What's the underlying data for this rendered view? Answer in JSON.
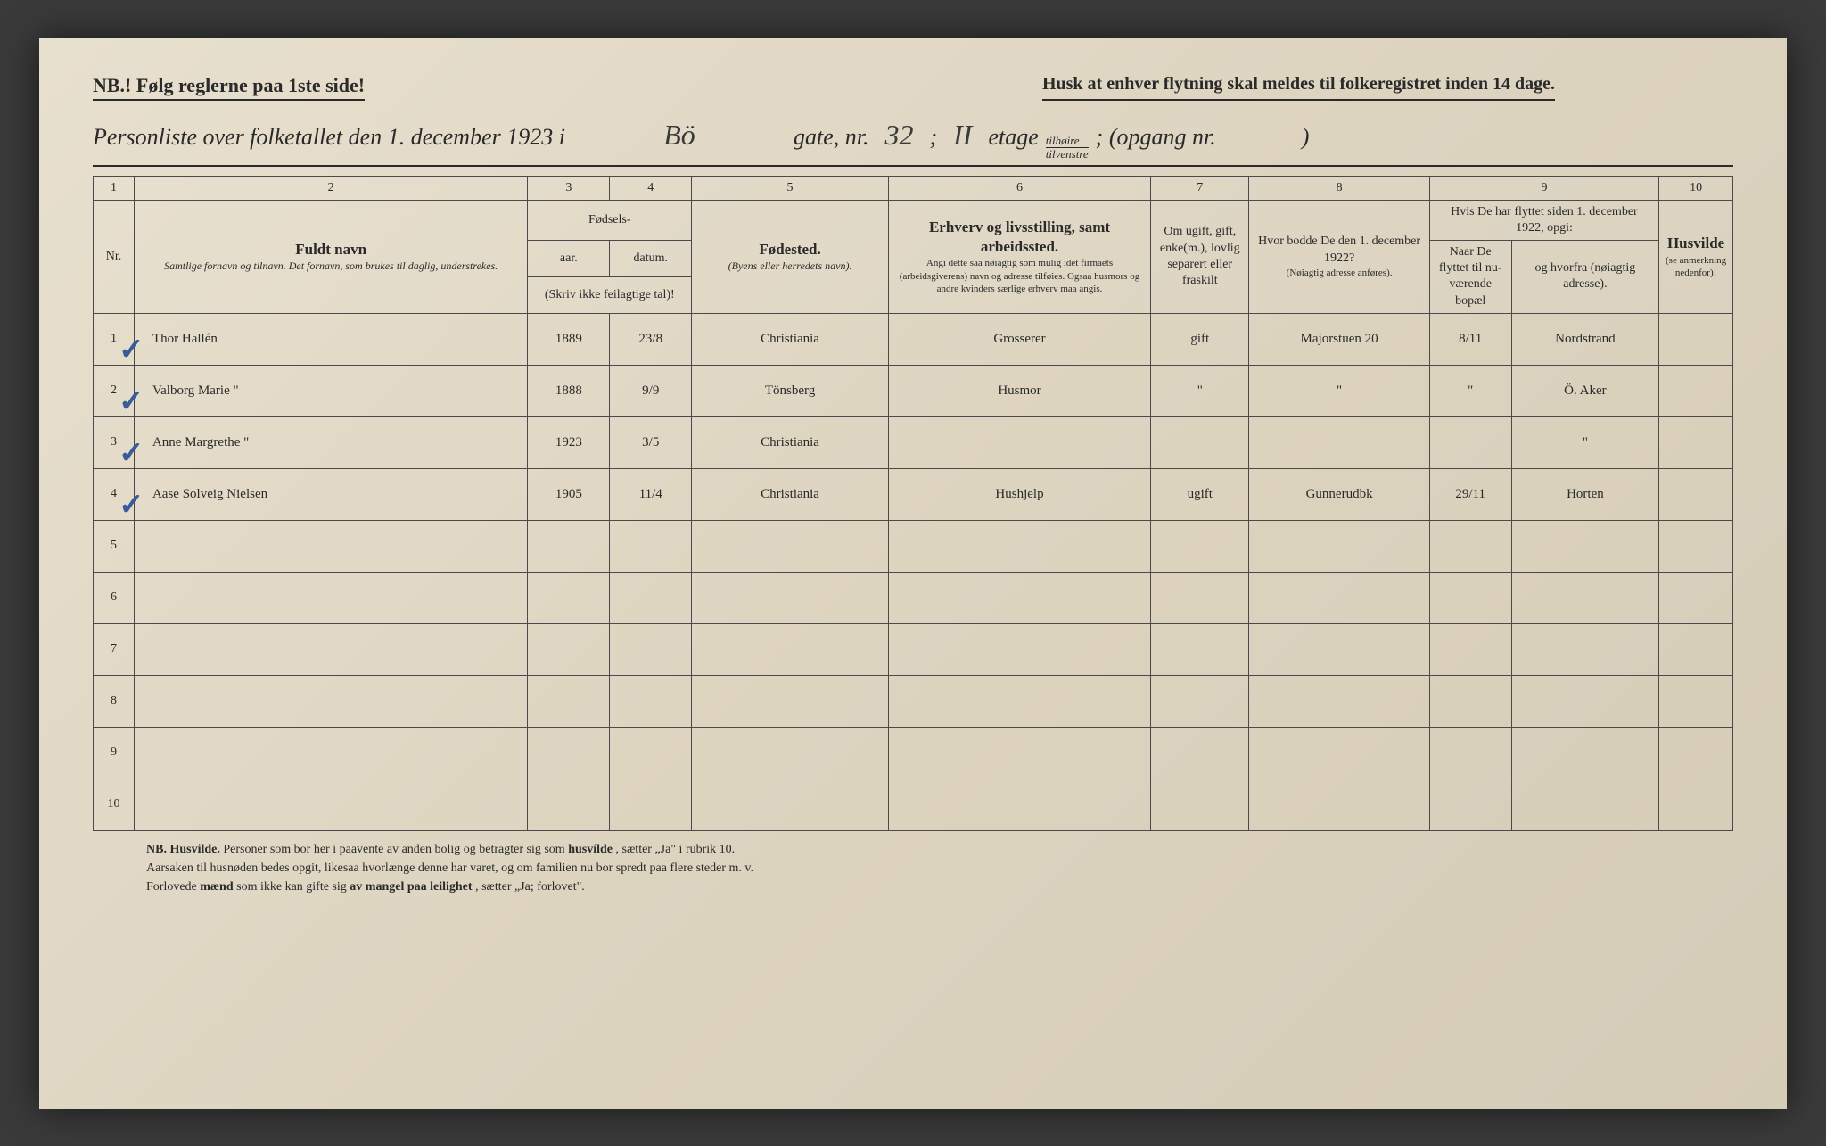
{
  "header": {
    "nb": "NB.! Følg reglerne paa 1ste side!",
    "husk": "Husk at enhver flytning skal meldes til folkeregistret inden 14 dage.",
    "title_prefix": "Personliste over folketallet den 1. december 1923 i",
    "street": "Bö",
    "gate_label": "gate, nr.",
    "gate_nr": "32",
    "etage_label_pre": ";",
    "etage_nr": "II",
    "etage_label": "etage",
    "etage_opt_top": "tilhøire",
    "etage_opt_bot": "tilvenstre",
    "opgang_label": "; (opgang nr.",
    "opgang_nr": "",
    "opgang_close": ")"
  },
  "columns": {
    "nums": [
      "1",
      "2",
      "3",
      "4",
      "5",
      "6",
      "7",
      "8",
      "9",
      "10"
    ],
    "c1": "Nr.",
    "c2_title": "Fuldt navn",
    "c2_sub": "Samtlige fornavn og tilnavn. Det fornavn, som brukes til daglig, understrekes.",
    "c34_title": "Fødsels-",
    "c3": "aar.",
    "c4": "datum.",
    "c34_sub": "(Skriv ikke feilagtige tal)!",
    "c5_title": "Fødested.",
    "c5_sub": "(Byens eller herredets navn).",
    "c6_title": "Erhverv og livsstilling, samt arbeidssted.",
    "c6_sub": "Angi dette saa nøiagtig som mulig idet firmaets (arbeidsgiverens) navn og adresse tilføies. Ogsaa husmors og andre kvinders særlige erhverv maa angis.",
    "c7": "Om ugift, gift, enke(m.), lovlig separert eller fraskilt",
    "c8_title": "Hvor bodde De den 1. december 1922?",
    "c8_sub": "(Nøiagtig adresse anføres).",
    "c9_title": "Hvis De har flyttet siden 1. december 1922, opgi:",
    "c9a": "Naar De flyttet til nu-værende bopæl",
    "c9b": "og hvorfra (nøiagtig adresse).",
    "c10_title": "Husvilde",
    "c10_sub": "(se anmerkning nedenfor)!"
  },
  "rows": [
    {
      "nr": "1",
      "check": true,
      "name": "Thor Hallén",
      "year": "1889",
      "date": "23/8",
      "birthplace": "Christiania",
      "occupation": "Grosserer",
      "status": "gift",
      "addr1922": "Majorstuen 20",
      "moved_when": "8/11",
      "moved_from": "Nordstrand",
      "husvilde": ""
    },
    {
      "nr": "2",
      "check": true,
      "name": "Valborg Marie \"",
      "year": "1888",
      "date": "9/9",
      "birthplace": "Tönsberg",
      "occupation": "Husmor",
      "status": "\"",
      "addr1922": "\"",
      "moved_when": "\"",
      "moved_from": "Ö. Aker",
      "husvilde": ""
    },
    {
      "nr": "3",
      "check": true,
      "name": "Anne Margrethe \"",
      "year": "1923",
      "date": "3/5",
      "birthplace": "Christiania",
      "occupation": "",
      "status": "",
      "addr1922": "",
      "moved_when": "",
      "moved_from": "\"",
      "husvilde": ""
    },
    {
      "nr": "4",
      "check": true,
      "name": "Aase Solveig Nielsen",
      "underline": true,
      "year": "1905",
      "date": "11/4",
      "birthplace": "Christiania",
      "occupation": "Hushjelp",
      "status": "ugift",
      "addr1922": "Gunnerudbk",
      "moved_when": "29/11",
      "moved_from": "Horten",
      "husvilde": ""
    },
    {
      "nr": "5",
      "check": false,
      "name": "",
      "year": "",
      "date": "",
      "birthplace": "",
      "occupation": "",
      "status": "",
      "addr1922": "",
      "moved_when": "",
      "moved_from": "",
      "husvilde": ""
    },
    {
      "nr": "6",
      "check": false,
      "name": "",
      "year": "",
      "date": "",
      "birthplace": "",
      "occupation": "",
      "status": "",
      "addr1922": "",
      "moved_when": "",
      "moved_from": "",
      "husvilde": ""
    },
    {
      "nr": "7",
      "check": false,
      "name": "",
      "year": "",
      "date": "",
      "birthplace": "",
      "occupation": "",
      "status": "",
      "addr1922": "",
      "moved_when": "",
      "moved_from": "",
      "husvilde": ""
    },
    {
      "nr": "8",
      "check": false,
      "name": "",
      "year": "",
      "date": "",
      "birthplace": "",
      "occupation": "",
      "status": "",
      "addr1922": "",
      "moved_when": "",
      "moved_from": "",
      "husvilde": ""
    },
    {
      "nr": "9",
      "check": false,
      "name": "",
      "year": "",
      "date": "",
      "birthplace": "",
      "occupation": "",
      "status": "",
      "addr1922": "",
      "moved_when": "",
      "moved_from": "",
      "husvilde": ""
    },
    {
      "nr": "10",
      "check": false,
      "name": "",
      "year": "",
      "date": "",
      "birthplace": "",
      "occupation": "",
      "status": "",
      "addr1922": "",
      "moved_when": "",
      "moved_from": "",
      "husvilde": ""
    }
  ],
  "footer": {
    "line1_b1": "NB. Husvilde.",
    "line1": " Personer som bor her i paavente av anden bolig og betragter sig som ",
    "line1_b2": "husvilde",
    "line1_tail": ", sætter „Ja\" i rubrik 10.",
    "line2": "Aarsaken til husnøden bedes opgit, likesaa hvorlænge denne har varet, og om familien nu bor spredt paa flere steder m. v.",
    "line3_pre": "Forlovede ",
    "line3_b": "mænd",
    "line3_mid": " som ikke kan gifte sig ",
    "line3_b2": "av mangel paa leilighet",
    "line3_tail": ", sætter „Ja; forlovet\"."
  },
  "layout": {
    "col_widths_pct": [
      2.5,
      24,
      5,
      5,
      12,
      16,
      6,
      11,
      5,
      9,
      4.5
    ]
  }
}
